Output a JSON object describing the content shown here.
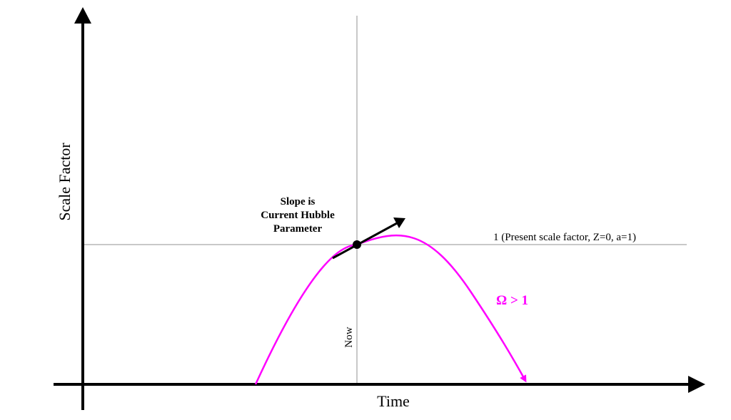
{
  "diagram": {
    "y_axis_label": "Scale Factor",
    "x_axis_label": "Time",
    "now_label": "Now",
    "present_line_label": "1 (Present scale factor, Z=0, a=1)",
    "slope_note": [
      "Slope is",
      "Current Hubble",
      "Parameter"
    ],
    "curve_label": "Ω > 1",
    "colors": {
      "axis": "#000000",
      "guide_line": "#c8c8c8",
      "curve": "#ff00ff",
      "point": "#000000"
    }
  }
}
